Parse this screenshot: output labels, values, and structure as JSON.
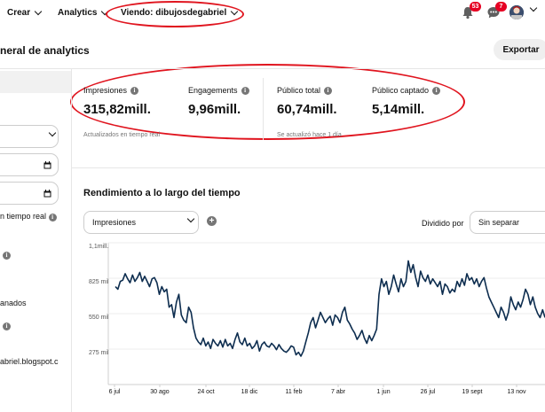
{
  "topbar": {
    "create_label": "Crear",
    "analytics_label": "Analytics",
    "viewing_label": "Viendo: dibujosdegabriel",
    "notifications_count": "53",
    "messages_count": "7"
  },
  "header": {
    "title": "neral de analytics",
    "export_label": "Exportar"
  },
  "sidebar": {
    "realtime_label": "n tiempo real",
    "item_label": "anados",
    "site_label": "abriel.blogspot.c"
  },
  "metrics": [
    {
      "label": "Impresiones",
      "value": "315,82mill."
    },
    {
      "label": "Engagements",
      "value": "9,96mill."
    },
    {
      "label": "Público total",
      "value": "60,74mill."
    },
    {
      "label": "Público captado",
      "value": "5,14mill."
    }
  ],
  "notes": {
    "realtime": "Actualizados en tiempo real",
    "updated": "Se actualizó hace 1 día"
  },
  "performance": {
    "title": "Rendimiento a lo largo del tiempo",
    "metric_select": "Impresiones",
    "split_label": "Dividido por",
    "split_select": "Sin separar"
  },
  "colors": {
    "line": "#0d2d4f",
    "badge": "#e60023",
    "annotation": "#e0141e"
  },
  "chart_data": {
    "type": "line",
    "y_ticks": [
      {
        "value": 1100000,
        "label": "1,1mill."
      },
      {
        "value": 825000,
        "label": "825 mil"
      },
      {
        "value": 550000,
        "label": "550 mil"
      },
      {
        "value": 275000,
        "label": "275 mil"
      }
    ],
    "x_ticks": [
      "6 jul",
      "30 ago",
      "24 oct",
      "18 dic",
      "11 feb",
      "7 abr",
      "1 jun",
      "26 jul",
      "19 sept",
      "13 nov"
    ],
    "ylim": [
      0,
      1100000
    ],
    "grid": true,
    "series": [
      {
        "values": [
          760000,
          740000,
          800000,
          810000,
          860000,
          820000,
          790000,
          850000,
          800000,
          830000,
          870000,
          800000,
          840000,
          800000,
          760000,
          820000,
          830000,
          790000,
          700000,
          760000,
          720000,
          740000,
          600000,
          620000,
          520000,
          640000,
          700000,
          540000,
          500000,
          480000,
          600000,
          560000,
          440000,
          360000,
          330000,
          310000,
          360000,
          300000,
          330000,
          280000,
          350000,
          320000,
          300000,
          340000,
          290000,
          350000,
          300000,
          320000,
          280000,
          350000,
          400000,
          330000,
          310000,
          360000,
          300000,
          320000,
          280000,
          300000,
          340000,
          260000,
          310000,
          330000,
          300000,
          290000,
          320000,
          300000,
          270000,
          310000,
          280000,
          260000,
          250000,
          270000,
          300000,
          290000,
          230000,
          250000,
          220000,
          260000,
          330000,
          400000,
          480000,
          520000,
          440000,
          500000,
          560000,
          520000,
          480000,
          510000,
          530000,
          460000,
          540000,
          520000,
          480000,
          560000,
          600000,
          500000,
          470000,
          430000,
          400000,
          350000,
          380000,
          420000,
          360000,
          320000,
          380000,
          340000,
          380000,
          430000,
          700000,
          820000,
          760000,
          800000,
          700000,
          760000,
          850000,
          780000,
          720000,
          820000,
          760000,
          800000,
          960000,
          870000,
          930000,
          830000,
          760000,
          880000,
          830000,
          800000,
          850000,
          780000,
          820000,
          790000,
          760000,
          800000,
          700000,
          780000,
          760000,
          710000,
          740000,
          720000,
          800000,
          760000,
          820000,
          770000,
          860000,
          810000,
          830000,
          780000,
          820000,
          760000,
          800000,
          830000,
          750000,
          680000,
          640000,
          600000,
          560000,
          520000,
          600000,
          560000,
          500000,
          560000,
          680000,
          620000,
          580000,
          640000,
          600000,
          660000,
          740000,
          700000,
          620000,
          680000,
          600000,
          550000,
          520000,
          580000,
          520000
        ]
      }
    ]
  }
}
